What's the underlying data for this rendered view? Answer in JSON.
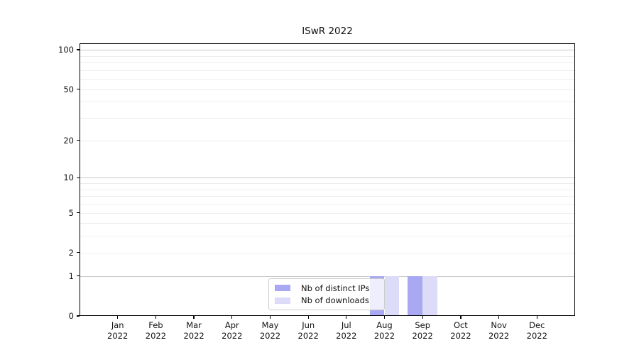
{
  "chart_data": {
    "type": "bar",
    "title": "ISwR 2022",
    "x": [
      "Jan 2022",
      "Feb 2022",
      "Mar 2022",
      "Apr 2022",
      "May 2022",
      "Jun 2022",
      "Jul 2022",
      "Aug 2022",
      "Sep 2022",
      "Oct 2022",
      "Nov 2022",
      "Dec 2022"
    ],
    "series": [
      {
        "name": "Nb of distinct IPs",
        "color": "#a9a9f3",
        "values": [
          0,
          0,
          0,
          0,
          0,
          0,
          0,
          1,
          1,
          0,
          0,
          0
        ]
      },
      {
        "name": "Nb of downloads",
        "color": "#dcdcf8",
        "values": [
          0,
          0,
          0,
          0,
          0,
          0,
          0,
          1,
          1,
          0,
          0,
          0
        ]
      }
    ],
    "xlabel": "",
    "ylabel": "",
    "y_scale": "log1p",
    "ylim": [
      0,
      112
    ],
    "y_ticks": [
      0,
      1,
      2,
      5,
      10,
      20,
      50,
      100
    ],
    "grid_major": [
      1,
      10,
      100
    ],
    "grid_minor": [
      2,
      3,
      4,
      5,
      6,
      7,
      8,
      9,
      20,
      30,
      40,
      50,
      60,
      70,
      80,
      90
    ],
    "legend": {
      "position": "lower center",
      "items": [
        "Nb of distinct IPs",
        "Nb of downloads"
      ]
    },
    "colors": {
      "axis": "#000000",
      "grid_major": "#c8c8c8",
      "grid_minor": "#ededed",
      "text": "#111111",
      "legend_border": "#cccccc"
    }
  }
}
